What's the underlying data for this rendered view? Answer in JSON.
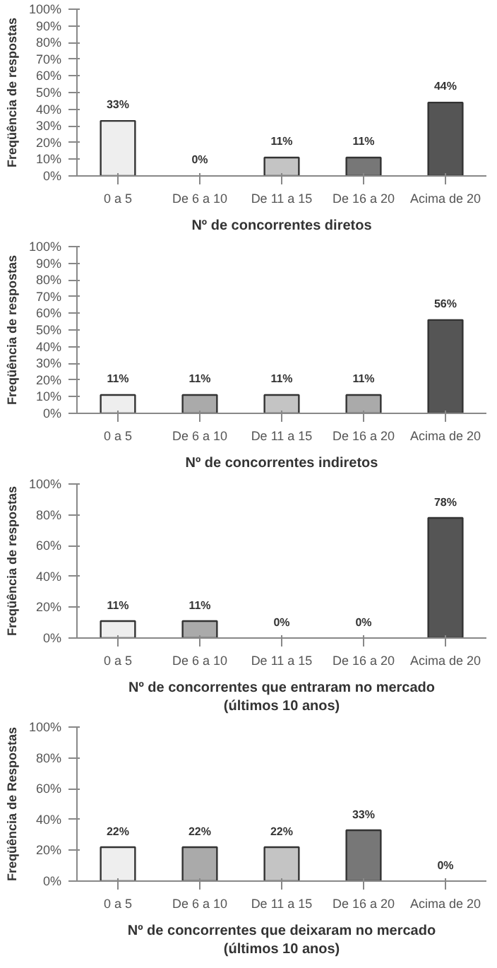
{
  "chart_data": [
    {
      "type": "bar",
      "xlabel": "Nº de concorrentes diretos",
      "ylabel": "Freqüência de respostas",
      "categories": [
        "0 a 5",
        "De 6 a 10",
        "De 11 a 15",
        "De 16 a 20",
        "Acima de 20"
      ],
      "values": [
        33,
        0,
        11,
        11,
        44
      ],
      "value_labels": [
        "33%",
        "0%",
        "11%",
        "11%",
        "44%"
      ],
      "colors": [
        "#eeeeee",
        null,
        "#c4c4c4",
        "#777777",
        "#555555"
      ],
      "ylim": [
        0,
        100
      ],
      "yticks": [
        {
          "value": 0,
          "label": "0%"
        },
        {
          "value": 10,
          "label": "10%"
        },
        {
          "value": 20,
          "label": "20%"
        },
        {
          "value": 30,
          "label": "30%"
        },
        {
          "value": 40,
          "label": "40%"
        },
        {
          "value": 50,
          "label": "50%"
        },
        {
          "value": 60,
          "label": "60%"
        },
        {
          "value": 70,
          "label": "70%"
        },
        {
          "value": 80,
          "label": "80%"
        },
        {
          "value": 90,
          "label": "90%"
        },
        {
          "value": 100,
          "label": "100%"
        }
      ],
      "grid": false
    },
    {
      "type": "bar",
      "xlabel": "Nº de concorrentes indiretos",
      "ylabel": "Freqüência de respostas",
      "categories": [
        "0 a 5",
        "De 6 a 10",
        "De 11 a 15",
        "De 16 a 20",
        "Acima de 20"
      ],
      "values": [
        11,
        11,
        11,
        11,
        56
      ],
      "value_labels": [
        "11%",
        "11%",
        "11%",
        "11%",
        "56%"
      ],
      "colors": [
        "#eeeeee",
        "#aaaaaa",
        "#c4c4c4",
        "#aaaaaa",
        "#555555"
      ],
      "ylim": [
        0,
        100
      ],
      "yticks": [
        {
          "value": 0,
          "label": "0%"
        },
        {
          "value": 10,
          "label": "10%"
        },
        {
          "value": 20,
          "label": "20%"
        },
        {
          "value": 30,
          "label": "30%"
        },
        {
          "value": 40,
          "label": "40%"
        },
        {
          "value": 50,
          "label": "50%"
        },
        {
          "value": 60,
          "label": "60%"
        },
        {
          "value": 70,
          "label": "70%"
        },
        {
          "value": 80,
          "label": "80%"
        },
        {
          "value": 90,
          "label": "90%"
        },
        {
          "value": 100,
          "label": "100%"
        }
      ],
      "grid": false
    },
    {
      "type": "bar",
      "xlabel": "Nº de concorrentes que entraram no mercado\n(últimos 10 anos)",
      "ylabel": "Freqüência de respostas",
      "categories": [
        "0 a 5",
        "De 6 a 10",
        "De 11 a 15",
        "De 16 a 20",
        "Acima de 20"
      ],
      "values": [
        11,
        11,
        0,
        0,
        78
      ],
      "value_labels": [
        "11%",
        "11%",
        "0%",
        "0%",
        "78%"
      ],
      "colors": [
        "#eeeeee",
        "#aaaaaa",
        null,
        null,
        "#555555"
      ],
      "ylim": [
        0,
        100
      ],
      "yticks": [
        {
          "value": 0,
          "label": "0%"
        },
        {
          "value": 20,
          "label": "20%"
        },
        {
          "value": 40,
          "label": "40%"
        },
        {
          "value": 60,
          "label": "60%"
        },
        {
          "value": 80,
          "label": "80%"
        },
        {
          "value": 100,
          "label": "100%"
        }
      ],
      "grid": false
    },
    {
      "type": "bar",
      "xlabel": "Nº de concorrentes que deixaram no mercado\n(últimos 10 anos)",
      "ylabel": "Freqüência de Respostas",
      "categories": [
        "0 a 5",
        "De 6 a 10",
        "De 11 a 15",
        "De 16 a 20",
        "Acima de 20"
      ],
      "values": [
        22,
        22,
        22,
        33,
        0
      ],
      "value_labels": [
        "22%",
        "22%",
        "22%",
        "33%",
        "0%"
      ],
      "colors": [
        "#eeeeee",
        "#aaaaaa",
        "#c4c4c4",
        "#777777",
        null
      ],
      "ylim": [
        0,
        100
      ],
      "yticks": [
        {
          "value": 0,
          "label": "0%"
        },
        {
          "value": 20,
          "label": "20%"
        },
        {
          "value": 40,
          "label": "40%"
        },
        {
          "value": 60,
          "label": "60%"
        },
        {
          "value": 80,
          "label": "80%"
        },
        {
          "value": 100,
          "label": "100%"
        }
      ],
      "grid": false
    }
  ]
}
